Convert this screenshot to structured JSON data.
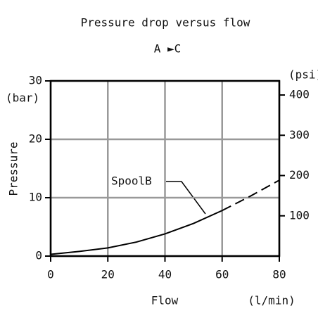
{
  "chart_data": {
    "type": "line",
    "title": "Pressure drop versus flow",
    "subtitle": "A ►C",
    "x_label": "Flow",
    "x_unit": "(l/min)",
    "y_label": "Pressure",
    "y_unit": "(bar)",
    "y2_unit": "(psi)",
    "annotation": "SpoolB",
    "x": [
      0,
      10,
      20,
      30,
      40,
      50,
      60,
      70,
      80
    ],
    "series": [
      {
        "name": "SpoolB",
        "color": "#000000",
        "values": [
          0.3,
          0.8,
          1.4,
          2.4,
          3.8,
          5.6,
          7.8,
          null,
          null
        ]
      },
      {
        "color": "#000000",
        "dashed": true,
        "values": [
          null,
          null,
          null,
          null,
          null,
          null,
          7.8,
          10.3,
          13
        ]
      }
    ],
    "xlim": [
      0,
      80
    ],
    "xticks": [
      0,
      20,
      40,
      60,
      80
    ],
    "ylim": [
      0,
      30
    ],
    "yticks": [
      0,
      10,
      20,
      30
    ],
    "y2lim": [
      0,
      435
    ],
    "y2ticks": [
      100,
      200,
      300,
      400
    ],
    "grid": true,
    "grid_color": "#999999"
  }
}
